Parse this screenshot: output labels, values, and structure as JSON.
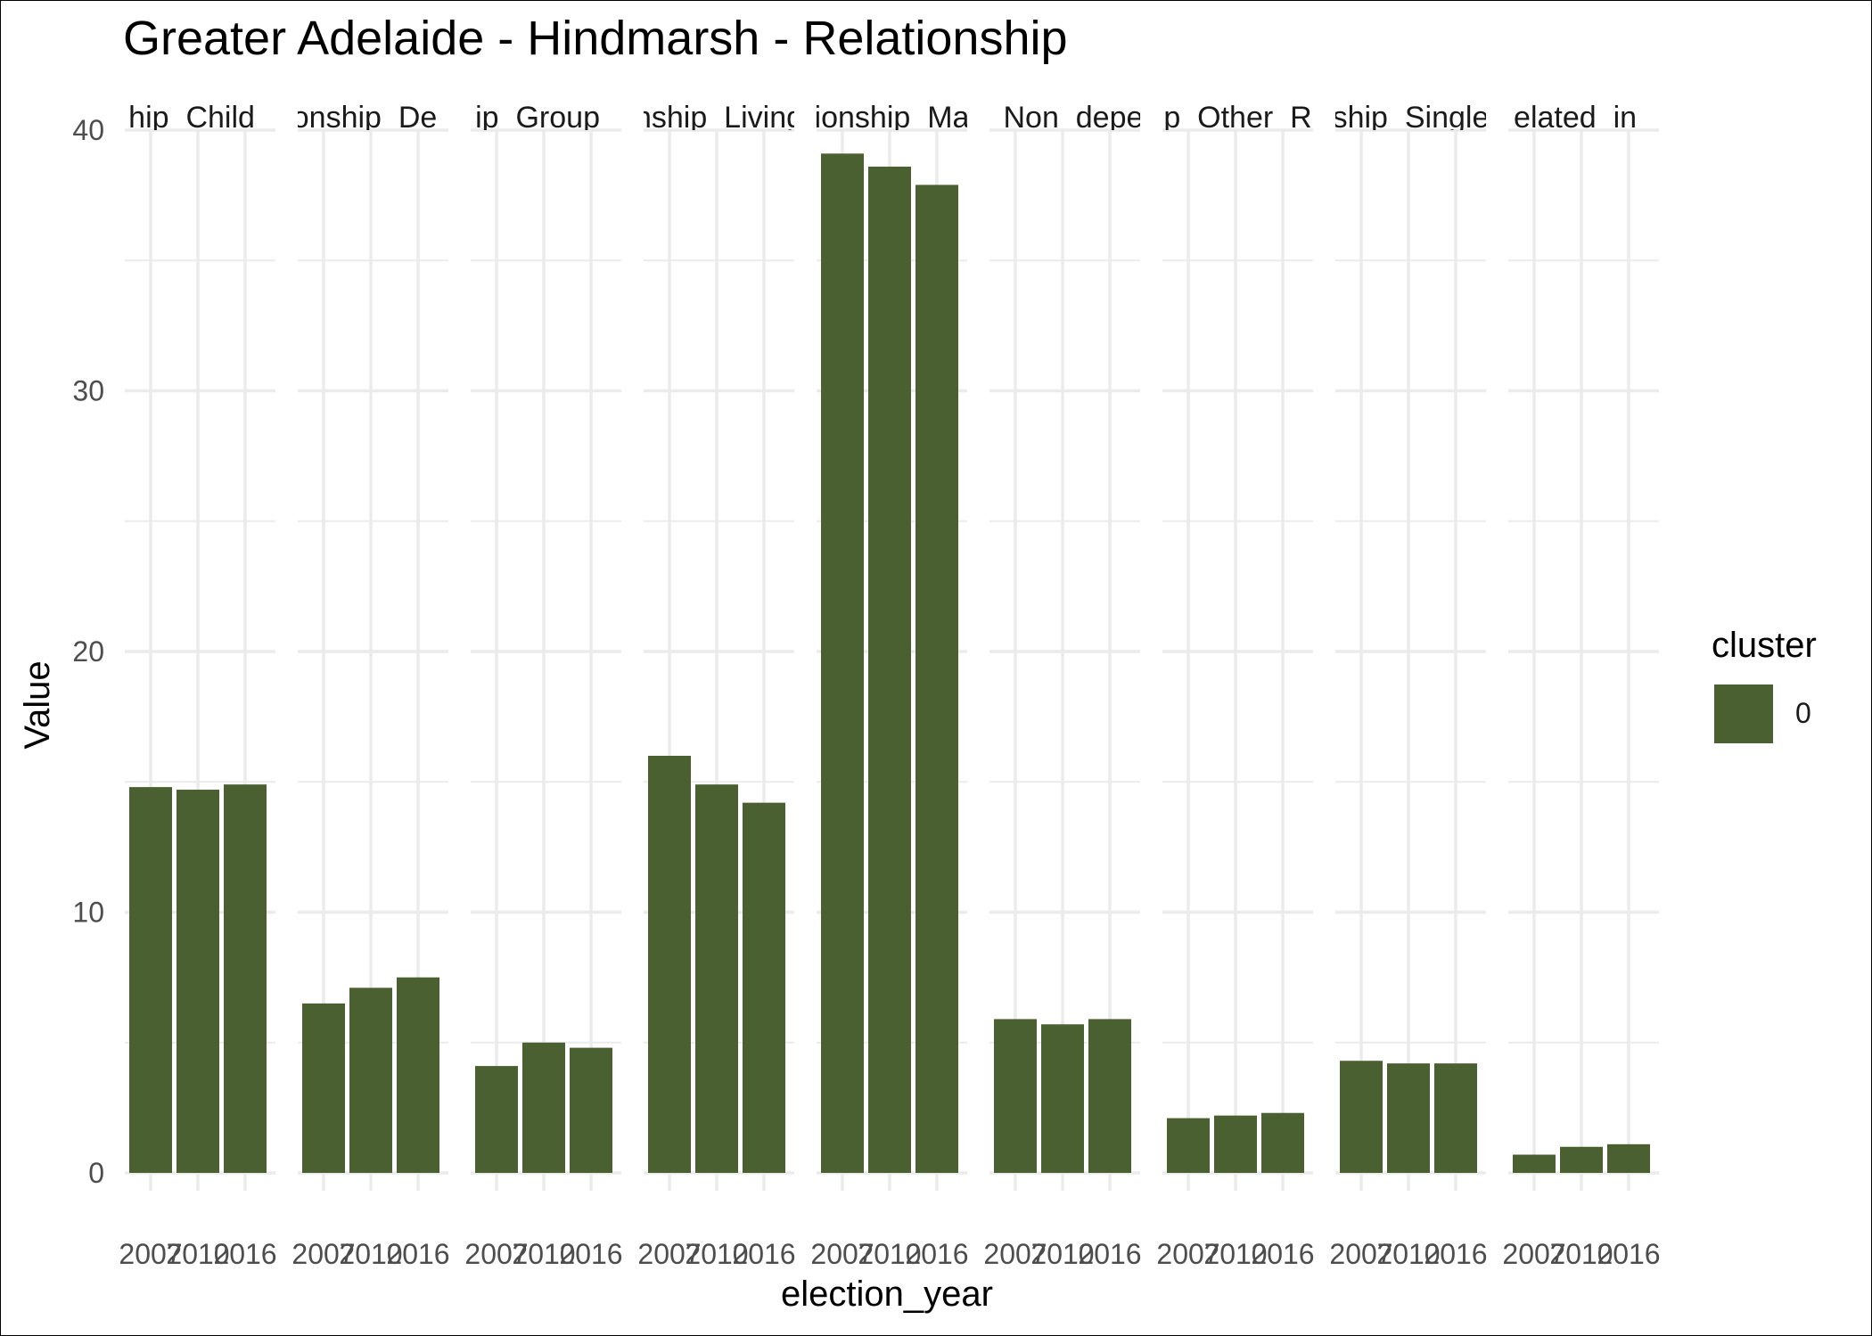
{
  "chart_data": {
    "type": "bar",
    "title": "Greater Adelaide - Hindmarsh - Relationship",
    "xlabel": "election_year",
    "ylabel": "Value",
    "ylim": [
      0,
      40
    ],
    "yticks": [
      0,
      10,
      20,
      30,
      40
    ],
    "categories": [
      "2007",
      "2010",
      "2016"
    ],
    "x_tick_labels": [
      "2007",
      "2010",
      "2016"
    ],
    "panels": [
      {
        "strip": "hip_Child_",
        "values": [
          14.8,
          14.7,
          14.9
        ]
      },
      {
        "strip": "onship_De_",
        "values": [
          6.5,
          7.1,
          7.5
        ]
      },
      {
        "strip": "ip_Group_",
        "values": [
          4.1,
          5.0,
          4.8
        ]
      },
      {
        "strip": "nship_Living",
        "values": [
          16.0,
          14.9,
          14.2
        ]
      },
      {
        "strip": "ionship_Ma",
        "values": [
          39.1,
          38.6,
          37.9
        ]
      },
      {
        "strip": "_Non_depe",
        "values": [
          5.9,
          5.7,
          5.9
        ]
      },
      {
        "strip": "p_Other_R",
        "values": [
          2.1,
          2.2,
          2.3
        ]
      },
      {
        "strip": "ship_Single",
        "values": [
          4.3,
          4.2,
          4.2
        ]
      },
      {
        "strip": "elated_in_",
        "values": [
          0.7,
          1.0,
          1.1
        ]
      }
    ],
    "grid": true,
    "legend": {
      "title": "cluster",
      "entries": [
        "0"
      ],
      "placement": "right"
    },
    "colors": {
      "bar": "#4a6030",
      "grid": "#ebebeb"
    }
  }
}
